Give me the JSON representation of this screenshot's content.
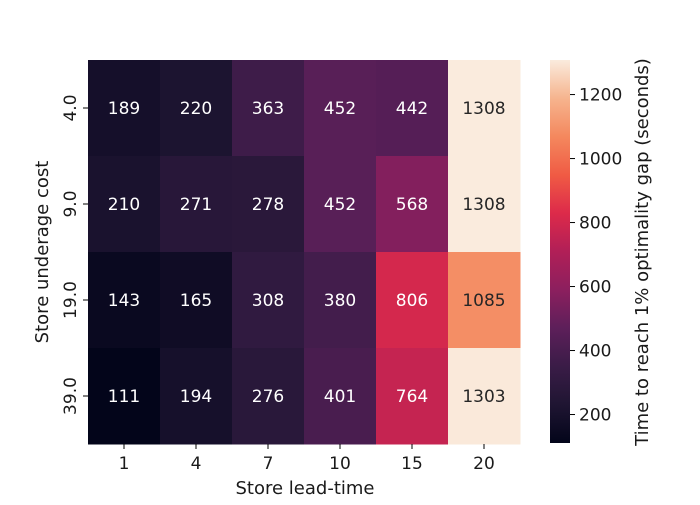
{
  "chart_data": {
    "type": "heatmap",
    "xlabel": "Store lead-time",
    "ylabel": "Store underage cost",
    "colorbar_label": "Time to reach 1% optimality gap (seconds)",
    "x_categories": [
      "1",
      "4",
      "7",
      "10",
      "15",
      "20"
    ],
    "y_categories": [
      "4.0",
      "9.0",
      "19.0",
      "39.0"
    ],
    "values": [
      [
        189,
        220,
        363,
        452,
        442,
        1308
      ],
      [
        210,
        271,
        278,
        452,
        568,
        1308
      ],
      [
        143,
        165,
        308,
        380,
        806,
        1085
      ],
      [
        111,
        194,
        276,
        401,
        764,
        1303
      ]
    ],
    "vmin": 111,
    "vmax": 1308,
    "colorbar_ticks": [
      "200",
      "400",
      "600",
      "800",
      "1000",
      "1200"
    ],
    "colormap": "rocket"
  }
}
